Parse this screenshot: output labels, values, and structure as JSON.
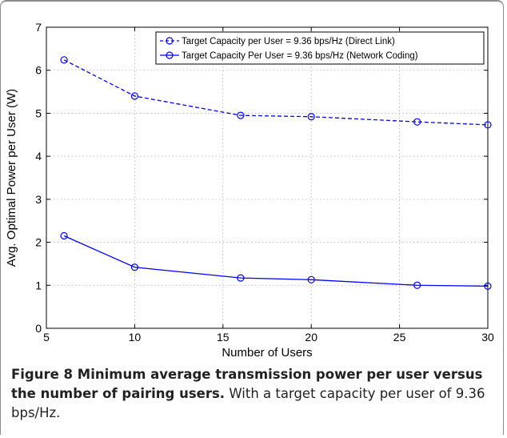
{
  "chart_data": {
    "type": "line",
    "title": "",
    "xlabel": "Number of Users",
    "ylabel": "Avg. Optimal Power per User (W)",
    "xlim": [
      5,
      30
    ],
    "ylim": [
      0,
      7
    ],
    "xticks": [
      "5",
      "10",
      "15",
      "20",
      "25",
      "30"
    ],
    "yticks": [
      "0",
      "1",
      "2",
      "3",
      "4",
      "5",
      "6",
      "7"
    ],
    "grid": true,
    "legend_position": "top-right",
    "series": [
      {
        "name": "Target Capacity per User = 9.36 bps/Hz (Direct Link)",
        "style": "dashed",
        "marker": "circle",
        "color": "#0000ff",
        "x": [
          6,
          10,
          16,
          20,
          26,
          30
        ],
        "y": [
          6.24,
          5.4,
          4.95,
          4.92,
          4.8,
          4.73
        ]
      },
      {
        "name": "Target Capacity Per User = 9.36 bps/Hz (Network Coding)",
        "style": "solid",
        "marker": "circle",
        "color": "#0000ff",
        "x": [
          6,
          10,
          16,
          20,
          26,
          30
        ],
        "y": [
          2.15,
          1.42,
          1.17,
          1.13,
          1.0,
          0.98
        ]
      }
    ]
  },
  "caption": {
    "bold": "Figure 8 Minimum average transmission power per user versus the number of pairing users.",
    "normal": " With a target capacity per user of 9.36 bps/Hz."
  }
}
